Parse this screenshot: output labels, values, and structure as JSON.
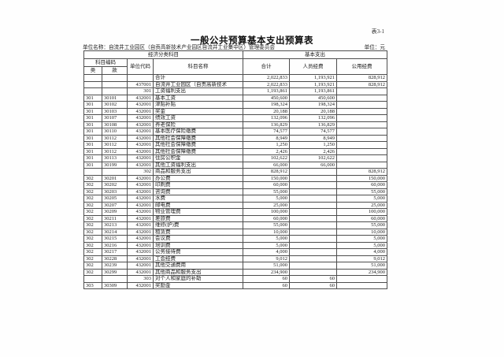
{
  "page": {
    "table_ref": "表3-1",
    "title": "一般公共预算基本支出预算表",
    "unit_name_line": "单位名称：自流井工业园区（自贡高新技术产业园区自流井工业集中区）管理委员会",
    "unit_of_measure": "单位：元"
  },
  "table": {
    "headers": {
      "economic_class_section": "经济分类科目",
      "basic_expenditure_section": "基本支出",
      "subject_code": "科目编码",
      "category": "类",
      "item": "款",
      "unit_code": "单位代码",
      "subject_name": "科目名称",
      "total": "合计",
      "personnel_funds": "人员经费",
      "public_funds": "公用经费"
    },
    "rows": [
      {
        "cells": [
          "",
          "",
          "",
          "合计",
          "2,022,833",
          "1,193,921",
          "828,912"
        ],
        "indent": 1
      },
      {
        "cells": [
          "",
          "",
          "437001",
          "自流井工业园区（自贡高新技术",
          "2,022,833",
          "1,193,921",
          "828,912"
        ],
        "indent": 0
      },
      {
        "cells": [
          "",
          "",
          "301",
          "工资福利支出",
          "1,193,861",
          "1,193,861",
          ""
        ],
        "indent": 1
      },
      {
        "cells": [
          "301",
          "30101",
          "432001",
          "基本工资",
          "450,600",
          "450,600",
          ""
        ],
        "indent": 2
      },
      {
        "cells": [
          "301",
          "30102",
          "432001",
          "津贴补贴",
          "198,324",
          "198,324",
          ""
        ],
        "indent": 2
      },
      {
        "cells": [
          "301",
          "30103",
          "432001",
          "奖金",
          "20,188",
          "20,188",
          ""
        ],
        "indent": 2
      },
      {
        "cells": [
          "301",
          "30107",
          "432001",
          "绩效工资",
          "132,096",
          "132,096",
          ""
        ],
        "indent": 2
      },
      {
        "cells": [
          "301",
          "30108",
          "432001",
          "养老保险",
          "136,829",
          "136,829",
          ""
        ],
        "indent": 2
      },
      {
        "cells": [
          "301",
          "30110",
          "432001",
          "基本医疗保险缴费",
          "74,577",
          "74,577",
          ""
        ],
        "indent": 2
      },
      {
        "cells": [
          "301",
          "30112",
          "432001",
          "其他社会保障缴费",
          "8,949",
          "8,949",
          ""
        ],
        "indent": 2
      },
      {
        "cells": [
          "301",
          "30112",
          "432001",
          "其他社会保障缴费",
          "1,250",
          "1,250",
          ""
        ],
        "indent": 2
      },
      {
        "cells": [
          "301",
          "30112",
          "432001",
          "其他社会保障缴费",
          "2,426",
          "2,426",
          ""
        ],
        "indent": 2
      },
      {
        "cells": [
          "301",
          "30113",
          "432001",
          "住房公积金",
          "102,622",
          "102,622",
          ""
        ],
        "indent": 2
      },
      {
        "cells": [
          "301",
          "30199",
          "432001",
          "其他工资福利支出",
          "66,000",
          "66,000",
          ""
        ],
        "indent": 2
      },
      {
        "cells": [
          "",
          "",
          "302",
          "商品和服务支出",
          "828,912",
          "",
          "828,912"
        ],
        "indent": 1
      },
      {
        "cells": [
          "302",
          "30201",
          "432001",
          "办公费",
          "150,000",
          "",
          "150,000"
        ],
        "indent": 2
      },
      {
        "cells": [
          "302",
          "30202",
          "432001",
          "印刷费",
          "60,000",
          "",
          "60,000"
        ],
        "indent": 2
      },
      {
        "cells": [
          "302",
          "30203",
          "432001",
          "咨询费",
          "55,000",
          "",
          "55,000"
        ],
        "indent": 2
      },
      {
        "cells": [
          "302",
          "30205",
          "432001",
          "水费",
          "5,000",
          "",
          "5,000"
        ],
        "indent": 2
      },
      {
        "cells": [
          "302",
          "30207",
          "432001",
          "邮电费",
          "25,000",
          "",
          "25,000"
        ],
        "indent": 2
      },
      {
        "cells": [
          "302",
          "30209",
          "432001",
          "物业管理费",
          "100,000",
          "",
          "100,000"
        ],
        "indent": 2
      },
      {
        "cells": [
          "302",
          "30211",
          "432001",
          "差旅费",
          "60,000",
          "",
          "60,000"
        ],
        "indent": 2
      },
      {
        "cells": [
          "302",
          "30213",
          "432001",
          "维修(护)费",
          "55,000",
          "",
          "55,000"
        ],
        "indent": 2
      },
      {
        "cells": [
          "302",
          "30214",
          "432001",
          "租赁费",
          "10,000",
          "",
          "10,000"
        ],
        "indent": 2
      },
      {
        "cells": [
          "302",
          "30215",
          "432001",
          "会议费",
          "5,000",
          "",
          "5,000"
        ],
        "indent": 2
      },
      {
        "cells": [
          "302",
          "30216",
          "432001",
          "培训费",
          "5,000",
          "",
          "5,000"
        ],
        "indent": 2
      },
      {
        "cells": [
          "302",
          "30217",
          "432001",
          "公务接待费",
          "4,000",
          "",
          "4,000"
        ],
        "indent": 2
      },
      {
        "cells": [
          "302",
          "30228",
          "432001",
          "工会经费",
          "9,012",
          "",
          "9,012"
        ],
        "indent": 2
      },
      {
        "cells": [
          "302",
          "30239",
          "432001",
          "其他交通费用",
          "51,000",
          "",
          "51,000"
        ],
        "indent": 2
      },
      {
        "cells": [
          "302",
          "30299",
          "432001",
          "其他商品和服务支出",
          "234,900",
          "",
          "234,900"
        ],
        "indent": 2
      },
      {
        "cells": [
          "",
          "",
          "303",
          "对个人和家庭的补助",
          "60",
          "60",
          ""
        ],
        "indent": 1
      },
      {
        "cells": [
          "303",
          "30309",
          "432001",
          "奖励金",
          "60",
          "60",
          ""
        ],
        "indent": 2
      }
    ]
  }
}
